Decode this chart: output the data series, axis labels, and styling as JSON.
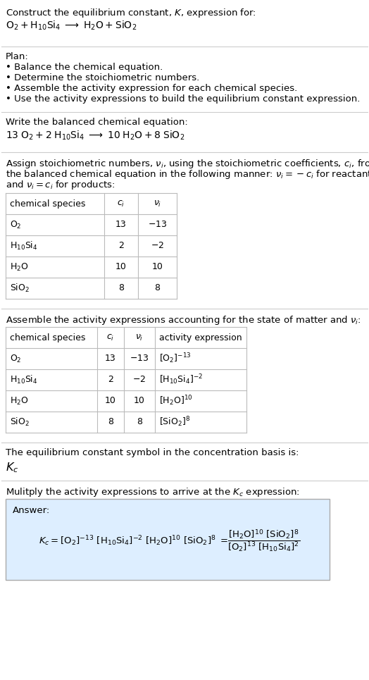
{
  "title_line1": "Construct the equilibrium constant, $K$, expression for:",
  "title_line2": "$\\mathrm{O_2 + H_{10}Si_4 \\;\\longrightarrow\\; H_2O + SiO_2}$",
  "plan_header": "Plan:",
  "plan_items": [
    "• Balance the chemical equation.",
    "• Determine the stoichiometric numbers.",
    "• Assemble the activity expression for each chemical species.",
    "• Use the activity expressions to build the equilibrium constant expression."
  ],
  "balanced_header": "Write the balanced chemical equation:",
  "balanced_eq": "$13\\;\\mathrm{O_2 + 2\\;H_{10}Si_4 \\;\\longrightarrow\\; 10\\;H_2O + 8\\;SiO_2}$",
  "stoich_header_parts": [
    "Assign stoichiometric numbers, $\\nu_i$, using the stoichiometric coefficients, $c_i$, from",
    "the balanced chemical equation in the following manner: $\\nu_i = -c_i$ for reactants",
    "and $\\nu_i = c_i$ for products:"
  ],
  "table1_cols": [
    "chemical species",
    "$c_i$",
    "$\\nu_i$"
  ],
  "table1_rows": [
    [
      "$\\mathrm{O_2}$",
      "13",
      "$-13$"
    ],
    [
      "$\\mathrm{H_{10}Si_4}$",
      "2",
      "$-2$"
    ],
    [
      "$\\mathrm{H_2O}$",
      "10",
      "10"
    ],
    [
      "$\\mathrm{SiO_2}$",
      "8",
      "8"
    ]
  ],
  "activity_header": "Assemble the activity expressions accounting for the state of matter and $\\nu_i$:",
  "table2_cols": [
    "chemical species",
    "$c_i$",
    "$\\nu_i$",
    "activity expression"
  ],
  "table2_rows": [
    [
      "$\\mathrm{O_2}$",
      "13",
      "$-13$",
      "$[\\mathrm{O_2}]^{-13}$"
    ],
    [
      "$\\mathrm{H_{10}Si_4}$",
      "2",
      "$-2$",
      "$[\\mathrm{H_{10}Si_4}]^{-2}$"
    ],
    [
      "$\\mathrm{H_2O}$",
      "10",
      "10",
      "$[\\mathrm{H_2O}]^{10}$"
    ],
    [
      "$\\mathrm{SiO_2}$",
      "8",
      "8",
      "$[\\mathrm{SiO_2}]^{8}$"
    ]
  ],
  "kc_line1": "The equilibrium constant symbol in the concentration basis is:",
  "kc_symbol": "$K_c$",
  "multiply_line": "Mulitply the activity expressions to arrive at the $K_c$ expression:",
  "answer_label": "Answer:",
  "bg_color": "#ffffff",
  "answer_box_color": "#ddeeff",
  "table_line_color": "#bbbbbb",
  "text_color": "#000000",
  "font_size": 9.5,
  "small_font": 9.0
}
